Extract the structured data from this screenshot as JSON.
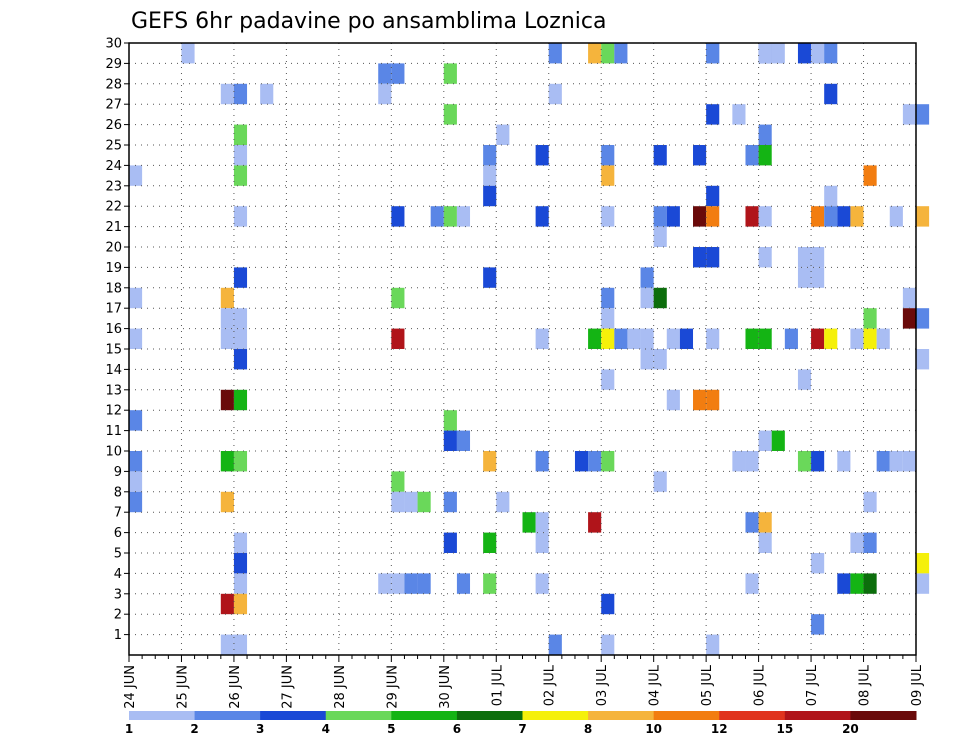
{
  "chart_data": {
    "type": "heatmap",
    "title": "GEFS 6hr padavine po ansamblima Loznica",
    "xlabel": "",
    "ylabel": "",
    "x_start": "2024-06-24T00",
    "x_step_hours": 6,
    "x_ticks": [
      "24 JUN",
      "25 JUN",
      "26 JUN",
      "27 JUN",
      "28 JUN",
      "29 JUN",
      "30 JUN",
      "01 JUL",
      "02 JUL",
      "03 JUL",
      "04 JUL",
      "05 JUL",
      "06 JUL",
      "07 JUL",
      "08 JUL",
      "09 JUL"
    ],
    "y_ticks": [
      1,
      2,
      3,
      4,
      5,
      6,
      7,
      8,
      9,
      10,
      11,
      12,
      13,
      14,
      15,
      16,
      17,
      18,
      19,
      20,
      21,
      22,
      23,
      24,
      25,
      26,
      27,
      28,
      29,
      30
    ],
    "ylim": [
      0,
      30
    ],
    "grid": true,
    "legend": {
      "position": "bottom",
      "levels": [
        "1",
        "2",
        "3",
        "4",
        "5",
        "6",
        "7",
        "8",
        "10",
        "12",
        "15",
        "20"
      ],
      "colors": [
        "#a9bdf3",
        "#5a86e6",
        "#1a49d6",
        "#6ad85a",
        "#14b414",
        "#0c6e0c",
        "#f5f00a",
        "#f5b43c",
        "#f27d10",
        "#e0341e",
        "#b0141a",
        "#6a0a0a"
      ]
    },
    "cells": [
      [
        "2024-06-24T00",
        15,
        1
      ],
      [
        "2024-06-24T00",
        17,
        1
      ],
      [
        "2024-06-24T00",
        11,
        2
      ],
      [
        "2024-06-24T00",
        9,
        2
      ],
      [
        "2024-06-24T00",
        8,
        1
      ],
      [
        "2024-06-24T00",
        7,
        2
      ],
      [
        "2024-06-24T00",
        23,
        1
      ],
      [
        "2024-06-25T00",
        29,
        1
      ],
      [
        "2024-06-25T18",
        27,
        1
      ],
      [
        "2024-06-25T18",
        17,
        9
      ],
      [
        "2024-06-25T18",
        16,
        1
      ],
      [
        "2024-06-25T18",
        15,
        1
      ],
      [
        "2024-06-25T18",
        12,
        20
      ],
      [
        "2024-06-25T18",
        9,
        5
      ],
      [
        "2024-06-25T18",
        7,
        8
      ],
      [
        "2024-06-25T18",
        2,
        15
      ],
      [
        "2024-06-25T18",
        0,
        1
      ],
      [
        "2024-06-26T00",
        27,
        2
      ],
      [
        "2024-06-26T00",
        25,
        4
      ],
      [
        "2024-06-26T00",
        24,
        1
      ],
      [
        "2024-06-26T00",
        23,
        4
      ],
      [
        "2024-06-26T00",
        21,
        1
      ],
      [
        "2024-06-26T00",
        18,
        3
      ],
      [
        "2024-06-26T00",
        16,
        1
      ],
      [
        "2024-06-26T00",
        15,
        1
      ],
      [
        "2024-06-26T00",
        14,
        3
      ],
      [
        "2024-06-26T00",
        12,
        5
      ],
      [
        "2024-06-26T00",
        9,
        4
      ],
      [
        "2024-06-26T00",
        5,
        1
      ],
      [
        "2024-06-26T00",
        4,
        3
      ],
      [
        "2024-06-26T00",
        3,
        1
      ],
      [
        "2024-06-26T00",
        2,
        8
      ],
      [
        "2024-06-26T00",
        0,
        1
      ],
      [
        "2024-06-26T12",
        27,
        1
      ],
      [
        "2024-06-28T18",
        28,
        2
      ],
      [
        "2024-06-28T18",
        27,
        1
      ],
      [
        "2024-06-28T18",
        3,
        1
      ],
      [
        "2024-06-29T00",
        28,
        2
      ],
      [
        "2024-06-29T00",
        21,
        3
      ],
      [
        "2024-06-29T00",
        17,
        4
      ],
      [
        "2024-06-29T00",
        15,
        15
      ],
      [
        "2024-06-29T00",
        8,
        4
      ],
      [
        "2024-06-29T00",
        7,
        1
      ],
      [
        "2024-06-29T00",
        3,
        1
      ],
      [
        "2024-06-29T06",
        7,
        1
      ],
      [
        "2024-06-29T06",
        3,
        2
      ],
      [
        "2024-06-29T12",
        7,
        4
      ],
      [
        "2024-06-29T12",
        3,
        2
      ],
      [
        "2024-06-29T18",
        21,
        2
      ],
      [
        "2024-06-30T00",
        28,
        4
      ],
      [
        "2024-06-30T00",
        26,
        4
      ],
      [
        "2024-06-30T00",
        21,
        4
      ],
      [
        "2024-06-30T00",
        11,
        4
      ],
      [
        "2024-06-30T00",
        10,
        3
      ],
      [
        "2024-06-30T00",
        7,
        2
      ],
      [
        "2024-06-30T00",
        5,
        3
      ],
      [
        "2024-06-30T06",
        21,
        1
      ],
      [
        "2024-06-30T06",
        10,
        2
      ],
      [
        "2024-06-30T06",
        3,
        2
      ],
      [
        "2024-06-30T18",
        24,
        2
      ],
      [
        "2024-06-30T18",
        23,
        1
      ],
      [
        "2024-06-30T18",
        22,
        3
      ],
      [
        "2024-06-30T18",
        18,
        3
      ],
      [
        "2024-06-30T18",
        9,
        8
      ],
      [
        "2024-06-30T18",
        5,
        5
      ],
      [
        "2024-06-30T18",
        3,
        4
      ],
      [
        "2024-07-01T00",
        25,
        1
      ],
      [
        "2024-07-01T00",
        7,
        1
      ],
      [
        "2024-07-01T12",
        6,
        5
      ],
      [
        "2024-07-01T18",
        24,
        3
      ],
      [
        "2024-07-01T18",
        21,
        3
      ],
      [
        "2024-07-01T18",
        15,
        1
      ],
      [
        "2024-07-01T18",
        9,
        2
      ],
      [
        "2024-07-01T18",
        6,
        1
      ],
      [
        "2024-07-01T18",
        5,
        1
      ],
      [
        "2024-07-01T18",
        3,
        1
      ],
      [
        "2024-07-02T00",
        30,
        2
      ],
      [
        "2024-07-02T00",
        27,
        1
      ],
      [
        "2024-07-02T00",
        0,
        2
      ],
      [
        "2024-07-02T12",
        9,
        3
      ],
      [
        "2024-07-02T18",
        30,
        8
      ],
      [
        "2024-07-02T18",
        15,
        5
      ],
      [
        "2024-07-02T18",
        9,
        2
      ],
      [
        "2024-07-02T18",
        6,
        15
      ],
      [
        "2024-07-03T00",
        30,
        4
      ],
      [
        "2024-07-03T00",
        24,
        2
      ],
      [
        "2024-07-03T00",
        23,
        8
      ],
      [
        "2024-07-03T00",
        21,
        1
      ],
      [
        "2024-07-03T00",
        17,
        2
      ],
      [
        "2024-07-03T00",
        16,
        1
      ],
      [
        "2024-07-03T00",
        15,
        7
      ],
      [
        "2024-07-03T00",
        13,
        1
      ],
      [
        "2024-07-03T00",
        9,
        4
      ],
      [
        "2024-07-03T00",
        2,
        3
      ],
      [
        "2024-07-03T00",
        0,
        1
      ],
      [
        "2024-07-03T06",
        30,
        2
      ],
      [
        "2024-07-03T06",
        15,
        2
      ],
      [
        "2024-07-03T12",
        15,
        1
      ],
      [
        "2024-07-03T18",
        15,
        1
      ],
      [
        "2024-07-03T18",
        14,
        1
      ],
      [
        "2024-07-03T18",
        17,
        1
      ],
      [
        "2024-07-03T18",
        18,
        2
      ],
      [
        "2024-07-04T00",
        24,
        3
      ],
      [
        "2024-07-04T00",
        21,
        2
      ],
      [
        "2024-07-04T00",
        20,
        1
      ],
      [
        "2024-07-04T00",
        17,
        6
      ],
      [
        "2024-07-04T00",
        14,
        1
      ],
      [
        "2024-07-04T00",
        8,
        1
      ],
      [
        "2024-07-04T06",
        21,
        3
      ],
      [
        "2024-07-04T06",
        15,
        1
      ],
      [
        "2024-07-04T06",
        12,
        1
      ],
      [
        "2024-07-04T12",
        15,
        3
      ],
      [
        "2024-07-04T18",
        24,
        3
      ],
      [
        "2024-07-04T18",
        21,
        20
      ],
      [
        "2024-07-04T18",
        19,
        3
      ],
      [
        "2024-07-04T18",
        12,
        10
      ],
      [
        "2024-07-05T00",
        30,
        1
      ],
      [
        "2024-07-05T00",
        29,
        2
      ],
      [
        "2024-07-05T00",
        26,
        3
      ],
      [
        "2024-07-05T00",
        22,
        3
      ],
      [
        "2024-07-05T00",
        21,
        10
      ],
      [
        "2024-07-05T00",
        19,
        3
      ],
      [
        "2024-07-05T00",
        15,
        1
      ],
      [
        "2024-07-05T00",
        12,
        10
      ],
      [
        "2024-07-05T00",
        0,
        1
      ],
      [
        "2024-07-05T12",
        26,
        1
      ],
      [
        "2024-07-05T12",
        9,
        1
      ],
      [
        "2024-07-05T18",
        24,
        2
      ],
      [
        "2024-07-05T18",
        21,
        15
      ],
      [
        "2024-07-05T18",
        15,
        5
      ],
      [
        "2024-07-05T18",
        9,
        1
      ],
      [
        "2024-07-05T18",
        6,
        2
      ],
      [
        "2024-07-05T18",
        3,
        1
      ],
      [
        "2024-07-06T00",
        30,
        3
      ],
      [
        "2024-07-06T00",
        29,
        1
      ],
      [
        "2024-07-06T00",
        25,
        2
      ],
      [
        "2024-07-06T00",
        24,
        5
      ],
      [
        "2024-07-06T00",
        21,
        1
      ],
      [
        "2024-07-06T00",
        19,
        1
      ],
      [
        "2024-07-06T00",
        15,
        5
      ],
      [
        "2024-07-06T00",
        10,
        1
      ],
      [
        "2024-07-06T00",
        6,
        8
      ],
      [
        "2024-07-06T00",
        5,
        1
      ],
      [
        "2024-07-06T06",
        30,
        1
      ],
      [
        "2024-07-06T06",
        10,
        5
      ],
      [
        "2024-07-06T12",
        15,
        2
      ],
      [
        "2024-07-06T18",
        30,
        3
      ],
      [
        "2024-07-06T18",
        19,
        1
      ],
      [
        "2024-07-06T18",
        18,
        1
      ],
      [
        "2024-07-06T18",
        13,
        1
      ],
      [
        "2024-07-06T18",
        9,
        4
      ],
      [
        "2024-07-07T00",
        30,
        1
      ],
      [
        "2024-07-07T00",
        29,
        1
      ],
      [
        "2024-07-07T00",
        21,
        10
      ],
      [
        "2024-07-07T00",
        19,
        1
      ],
      [
        "2024-07-07T00",
        18,
        1
      ],
      [
        "2024-07-07T00",
        15,
        15
      ],
      [
        "2024-07-07T00",
        9,
        3
      ],
      [
        "2024-07-07T00",
        4,
        1
      ],
      [
        "2024-07-07T00",
        1,
        2
      ],
      [
        "2024-07-07T06",
        29,
        2
      ],
      [
        "2024-07-07T06",
        27,
        3
      ],
      [
        "2024-07-07T06",
        22,
        1
      ],
      [
        "2024-07-07T06",
        21,
        2
      ],
      [
        "2024-07-07T06",
        15,
        7
      ],
      [
        "2024-07-07T12",
        21,
        3
      ],
      [
        "2024-07-07T12",
        9,
        1
      ],
      [
        "2024-07-07T12",
        3,
        3
      ],
      [
        "2024-07-07T18",
        21,
        8
      ],
      [
        "2024-07-07T18",
        15,
        1
      ],
      [
        "2024-07-07T18",
        5,
        1
      ],
      [
        "2024-07-07T18",
        3,
        5
      ],
      [
        "2024-07-08T00",
        23,
        10
      ],
      [
        "2024-07-08T00",
        16,
        4
      ],
      [
        "2024-07-08T00",
        15,
        7
      ],
      [
        "2024-07-08T00",
        7,
        1
      ],
      [
        "2024-07-08T00",
        5,
        2
      ],
      [
        "2024-07-08T00",
        3,
        6
      ],
      [
        "2024-07-08T06",
        15,
        1
      ],
      [
        "2024-07-08T06",
        9,
        2
      ],
      [
        "2024-07-08T12",
        21,
        1
      ],
      [
        "2024-07-08T12",
        9,
        1
      ],
      [
        "2024-07-08T18",
        26,
        1
      ],
      [
        "2024-07-08T18",
        17,
        1
      ],
      [
        "2024-07-08T18",
        16,
        20
      ],
      [
        "2024-07-08T18",
        9,
        1
      ],
      [
        "2024-07-09T00",
        26,
        2
      ],
      [
        "2024-07-09T00",
        21,
        8
      ],
      [
        "2024-07-09T00",
        16,
        2
      ],
      [
        "2024-07-09T00",
        14,
        1
      ],
      [
        "2024-07-09T00",
        4,
        7
      ],
      [
        "2024-07-09T00",
        3,
        1
      ]
    ]
  }
}
